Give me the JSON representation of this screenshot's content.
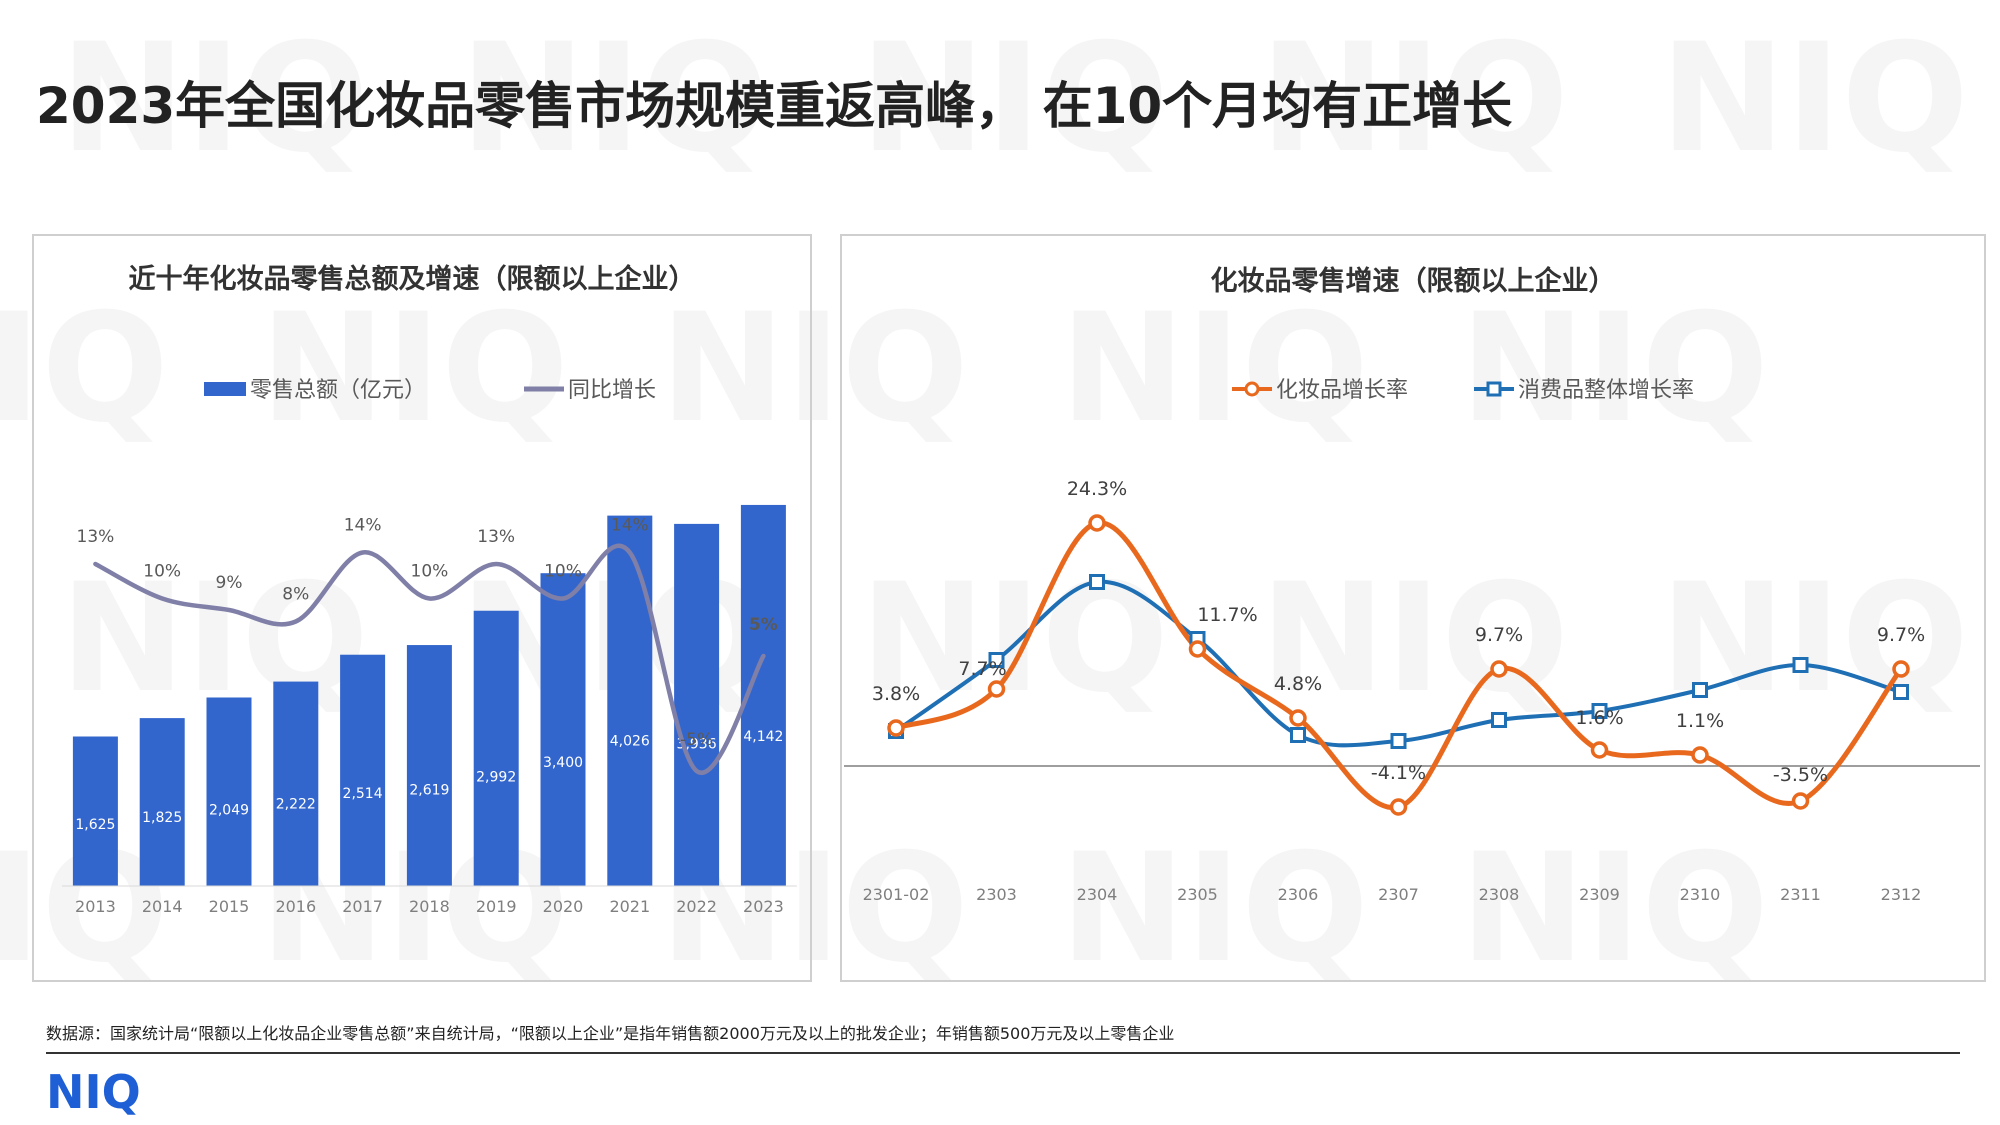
{
  "page": {
    "title": "2023年全国化妆品零售市场规模重返高峰， 在10个月均有正增长",
    "footnote": "数据源：国家统计局“限额以上化妆品企业零售总额”来自统计局，“限额以上企业”是指年销售额2000万元及以上的批发企业；年销售额500万元及以上零售企业",
    "logo_text": "NIQ",
    "watermark_text": "NIQ"
  },
  "colors": {
    "bar": "#3366CC",
    "growth_line": "#7F7FA8",
    "cosmetics_line": "#E8691E",
    "consumer_line": "#1F6FB5",
    "logo": "#1F5FD6",
    "watermark": "#F5F5F5"
  },
  "chart_data": [
    {
      "type": "bar",
      "title": "近十年化妆品零售总额及增速（限额以上企业）",
      "categories": [
        "2013",
        "2014",
        "2015",
        "2016",
        "2017",
        "2018",
        "2019",
        "2020",
        "2021",
        "2022",
        "2023"
      ],
      "series": [
        {
          "name": "零售总额（亿元）",
          "type": "bar",
          "values": [
            1625,
            1825,
            2049,
            2222,
            2514,
            2619,
            2992,
            3400,
            4026,
            3936,
            4142
          ],
          "labels": [
            "1,625",
            "1,825",
            "2,049",
            "2,222",
            "2,514",
            "2,619",
            "2,992",
            "3,400",
            "4,026",
            "3,936",
            "4,142"
          ]
        },
        {
          "name": "同比增长",
          "type": "line",
          "smooth": true,
          "values": [
            13,
            10,
            9,
            8,
            14,
            10,
            13,
            10,
            14,
            -5,
            5
          ],
          "labels": [
            "13%",
            "10%",
            "9%",
            "8%",
            "14%",
            "10%",
            "13%",
            "10%",
            "14%",
            "-5%",
            "5%"
          ]
        }
      ],
      "bar_ylim": [
        0,
        5000
      ],
      "line_ylim": [
        -15,
        25
      ],
      "legend": "top-center",
      "grid": false
    },
    {
      "type": "line",
      "title": "化妆品零售增速（限额以上企业）",
      "categories": [
        "2301-02",
        "2303",
        "2304",
        "2305",
        "2306",
        "2307",
        "2308",
        "2309",
        "2310",
        "2311",
        "2312"
      ],
      "series": [
        {
          "name": "化妆品增长率",
          "marker": "circle",
          "smooth": true,
          "values": [
            3.8,
            7.7,
            24.3,
            11.7,
            4.8,
            -4.1,
            9.7,
            1.6,
            1.1,
            -3.5,
            9.7
          ],
          "labels": [
            "3.8%",
            "7.7%",
            "24.3%",
            "11.7%",
            "4.8%",
            "-4.1%",
            "9.7%",
            "1.6%",
            "1.1%",
            "-3.5%",
            "9.7%"
          ]
        },
        {
          "name": "消费品整体增长率",
          "marker": "square",
          "smooth": true,
          "values": [
            3.5,
            10.6,
            18.4,
            12.7,
            3.1,
            2.5,
            4.6,
            5.5,
            7.6,
            10.1,
            7.4
          ]
        }
      ],
      "ylim": [
        -12,
        28
      ],
      "zero_line": true,
      "legend": "top-center",
      "grid": false
    }
  ]
}
